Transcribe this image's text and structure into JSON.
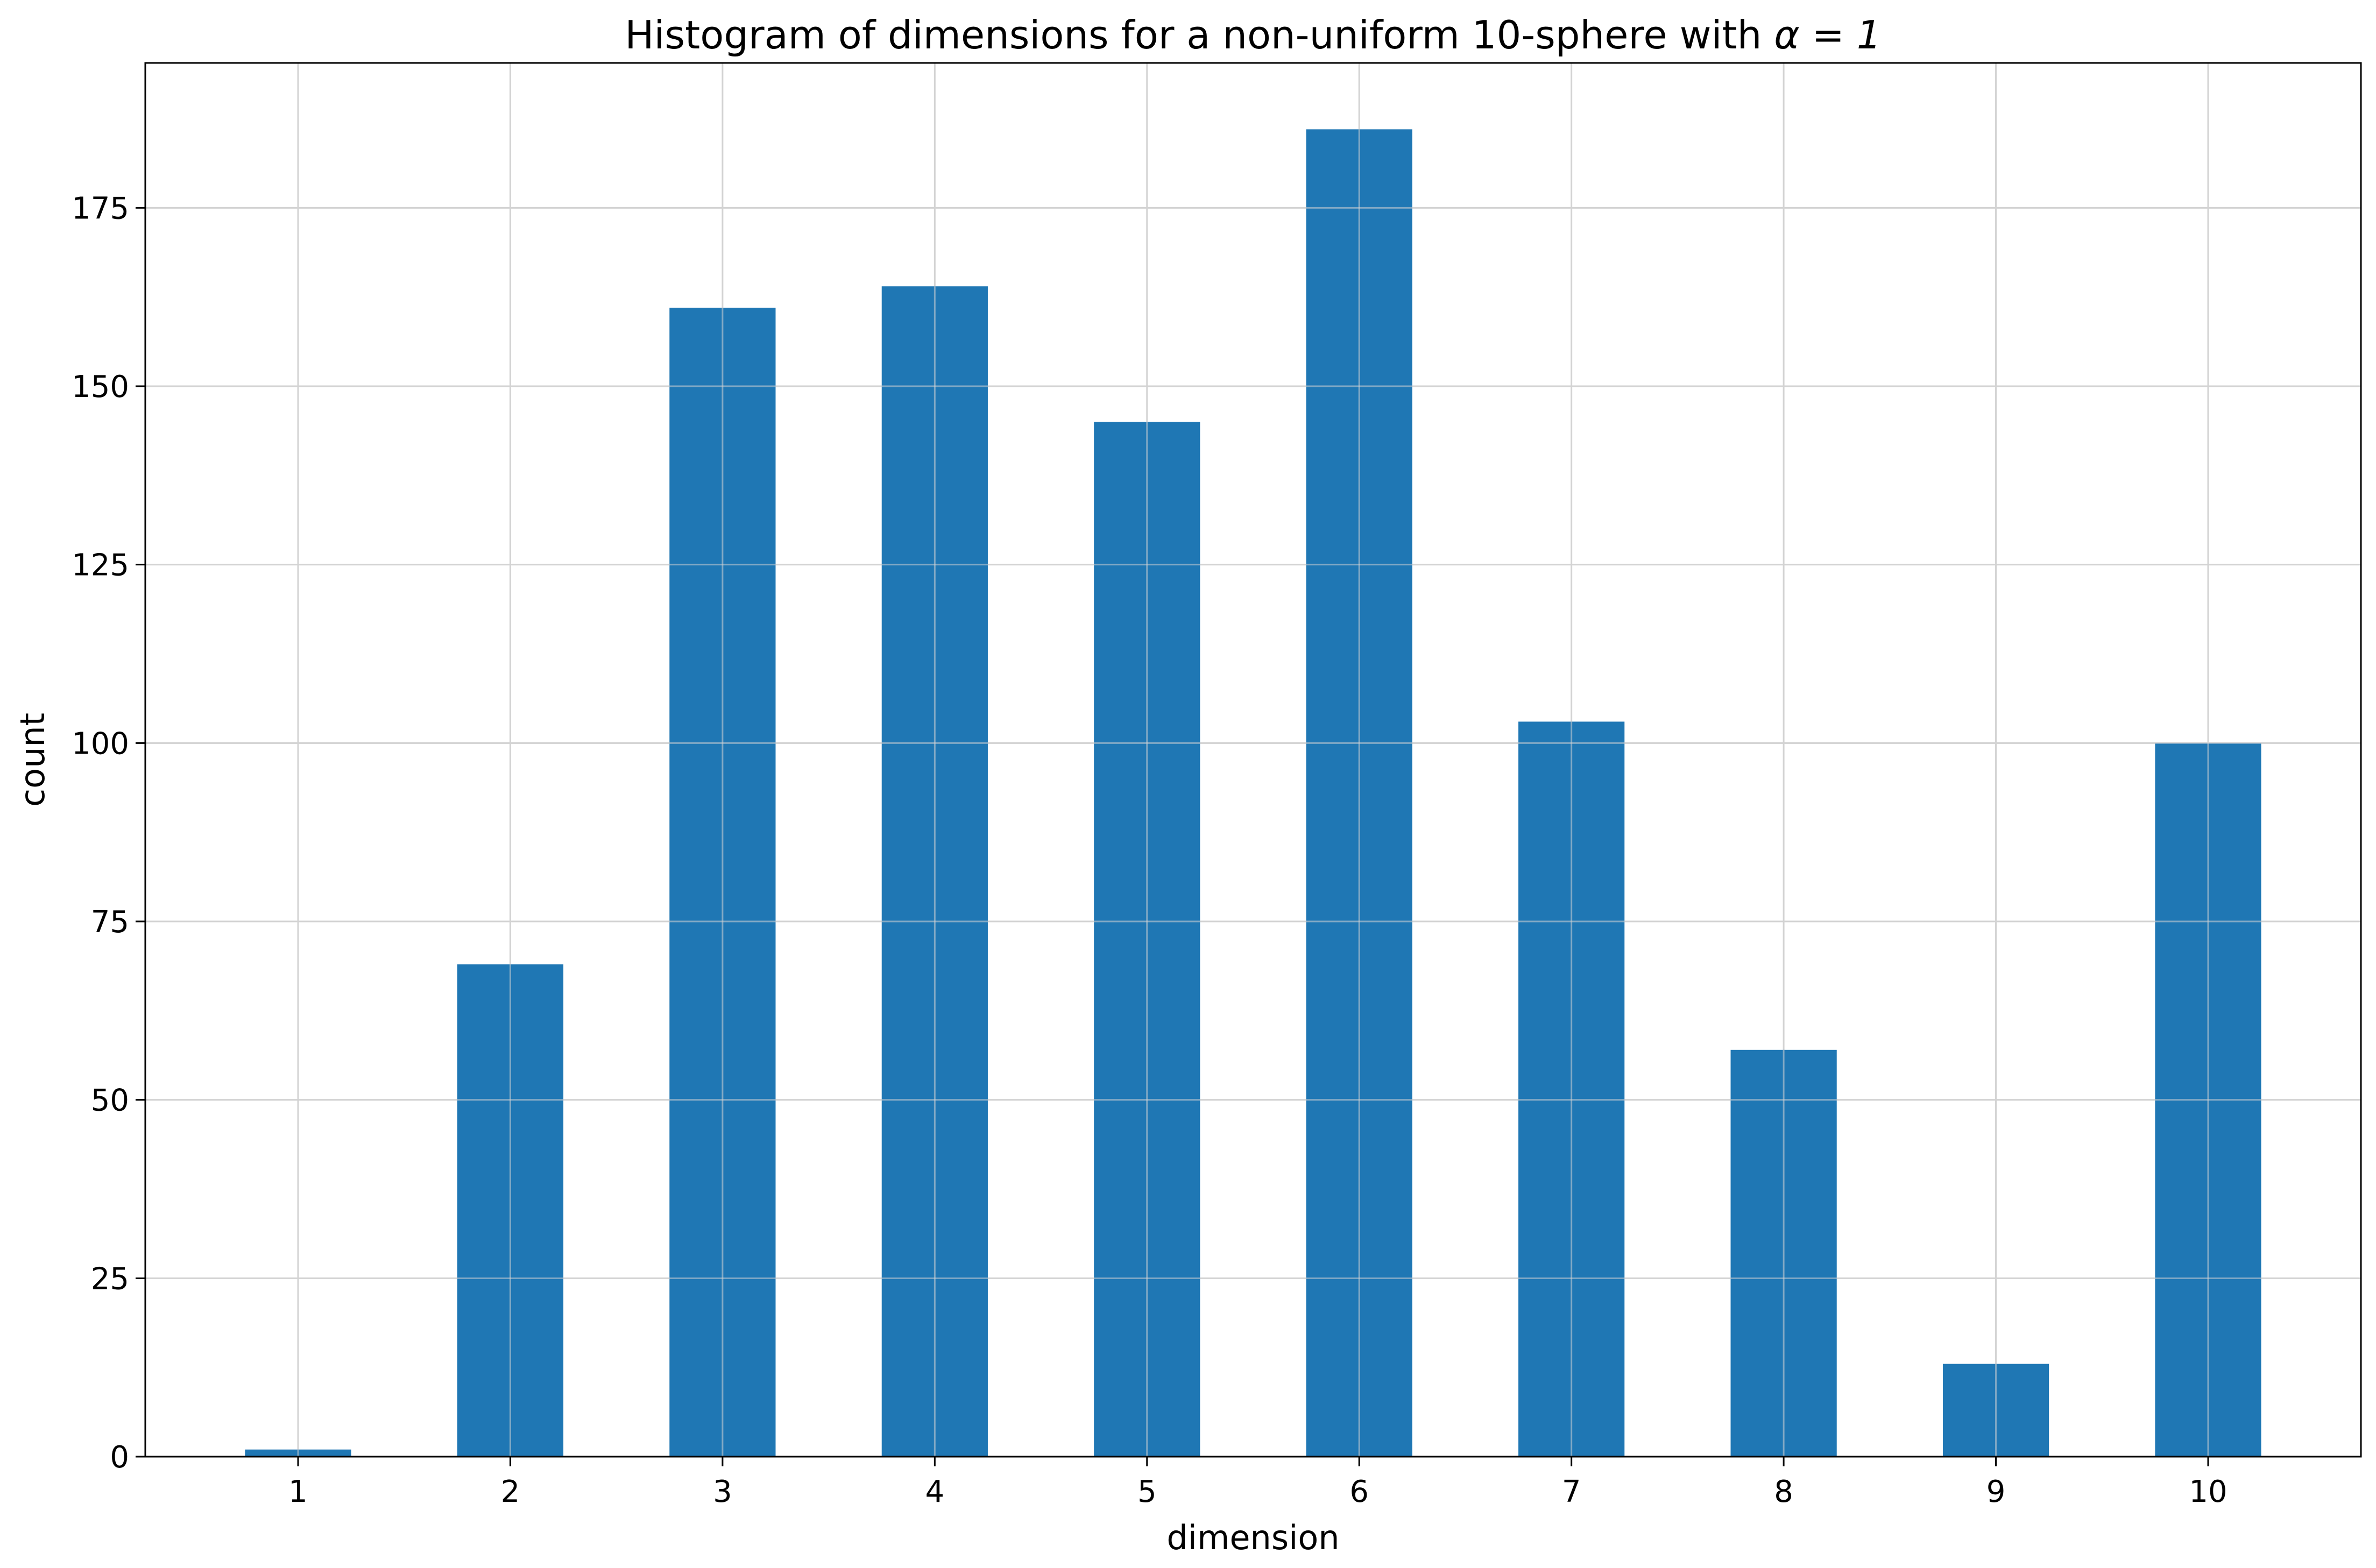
{
  "chart_data": {
    "type": "bar",
    "title_prefix": "Histogram of dimensions for a non-uniform 10-sphere with ",
    "title_math": "α = 1",
    "xlabel": "dimension",
    "ylabel": "count",
    "categories": [
      "1",
      "2",
      "3",
      "4",
      "5",
      "6",
      "7",
      "8",
      "9",
      "10"
    ],
    "values": [
      1,
      69,
      161,
      164,
      145,
      186,
      103,
      57,
      13,
      100
    ],
    "ylim": [
      0,
      195.3
    ],
    "yticks": [
      0,
      25,
      50,
      75,
      100,
      125,
      150,
      175
    ],
    "grid": true,
    "bar_color": "#1f77b4"
  }
}
